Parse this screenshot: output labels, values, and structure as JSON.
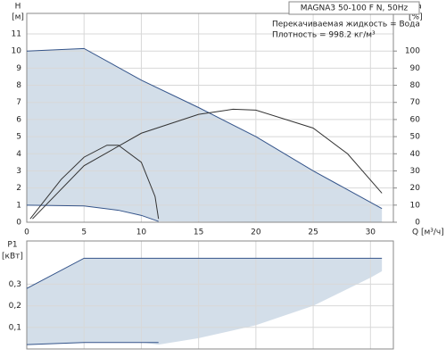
{
  "chart_data": [
    {
      "type": "line",
      "title": "MAGNA3 50-100 F N, 50Hz",
      "notes": [
        "Перекачиваемая жидкость = Вода",
        "Плотность = 998.2 кг/м³"
      ],
      "y_label": "H",
      "y_unit": "[м]",
      "y2_label": "eta",
      "y2_unit": "[%]",
      "x_label": "Q [м³/ч]",
      "xlim": [
        0,
        32
      ],
      "xticks": [
        0,
        5,
        10,
        15,
        20,
        25,
        30
      ],
      "ylim": [
        0,
        12.2
      ],
      "yticks": [
        0,
        1,
        2,
        3,
        4,
        5,
        6,
        7,
        8,
        9,
        10,
        11
      ],
      "y2lim": [
        0,
        122
      ],
      "y2ticks": [
        0,
        10,
        20,
        30,
        40,
        50,
        60,
        70,
        80,
        90,
        100
      ],
      "grid": true,
      "area_color": "#d3dee9",
      "area_lower": {
        "x": [
          0,
          5,
          8,
          10,
          11.5,
          31
        ],
        "values": [
          1,
          0.95,
          0.7,
          0.4,
          0.05,
          0
        ]
      },
      "series": [
        {
          "color": "#34548a",
          "x": [
            0,
            5,
            10,
            15,
            20,
            25,
            31
          ],
          "values": [
            10,
            10.15,
            8.3,
            6.7,
            5,
            3,
            0.8
          ]
        },
        {
          "color": "#34548a",
          "x": [
            0,
            5,
            8,
            10,
            11.5
          ],
          "values": [
            1,
            0.95,
            0.7,
            0.4,
            0.05
          ]
        },
        {
          "color": "#333333",
          "axis": "y2",
          "x": [
            0.5,
            5,
            10,
            15,
            18,
            20,
            25,
            28,
            31
          ],
          "values": [
            2,
            33,
            52,
            63,
            66,
            65.5,
            55,
            40,
            17
          ]
        },
        {
          "color": "#333333",
          "axis": "y2",
          "x": [
            0.3,
            3,
            5,
            7,
            8,
            10,
            11.2,
            11.5
          ],
          "values": [
            2,
            25,
            38,
            45,
            45,
            35,
            15,
            2
          ]
        }
      ]
    },
    {
      "type": "line",
      "y_label": "P1",
      "y_unit": "[кВт]",
      "xlim": [
        0,
        32
      ],
      "ylim": [
        0,
        0.5
      ],
      "yticks": [
        {
          "value": 0.1,
          "label": "0,1"
        },
        {
          "value": 0.2,
          "label": "0,2"
        },
        {
          "value": 0.3,
          "label": "0,3"
        }
      ],
      "grid": true,
      "area_color": "#d3dee9",
      "area_lower": {
        "x": [
          0,
          5,
          10,
          11.5,
          15,
          20,
          25,
          30,
          31
        ],
        "values": [
          0.02,
          0.03,
          0.03,
          0.02,
          0.05,
          0.11,
          0.2,
          0.33,
          0.36
        ]
      },
      "series": [
        {
          "color": "#34548a",
          "x": [
            0,
            5,
            31
          ],
          "values": [
            0.28,
            0.42,
            0.42
          ]
        },
        {
          "color": "#34548a",
          "x": [
            0,
            5,
            10,
            11.5
          ],
          "values": [
            0.02,
            0.03,
            0.03,
            0.03
          ]
        }
      ]
    }
  ]
}
